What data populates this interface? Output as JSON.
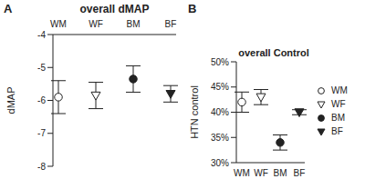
{
  "chart_data": [
    {
      "type": "scatter",
      "panel_label": "A",
      "title": "overall dMAP",
      "y_label": "dMAP",
      "categories": [
        "WM",
        "WF",
        "BM",
        "BF"
      ],
      "ylim": [
        -8,
        -4
      ],
      "yticks": [
        -8,
        -7,
        -6,
        -5,
        -4
      ],
      "series": [
        {
          "name": "WM",
          "marker": "circle_open",
          "color": "#222222",
          "values": [
            -5.9,
            null,
            null,
            null
          ],
          "error": [
            0.5,
            null,
            null,
            null
          ]
        },
        {
          "name": "WF",
          "marker": "triangle_down_open",
          "color": "#222222",
          "values": [
            null,
            -5.85,
            null,
            null
          ],
          "error": [
            null,
            0.4,
            null,
            null
          ]
        },
        {
          "name": "BM",
          "marker": "circle",
          "color": "#222222",
          "values": [
            null,
            null,
            -5.35,
            null
          ],
          "error": [
            null,
            null,
            0.4,
            null
          ]
        },
        {
          "name": "BF",
          "marker": "triangle_down",
          "color": "#222222",
          "values": [
            null,
            null,
            null,
            -5.8
          ],
          "error": [
            null,
            null,
            null,
            0.25
          ]
        }
      ]
    },
    {
      "type": "scatter",
      "panel_label": "B",
      "title": "overall Control",
      "y_label": "HTN control",
      "categories": [
        "WM",
        "WF",
        "BM",
        "BF"
      ],
      "ylim": [
        30,
        50
      ],
      "yticks": [
        {
          "value": 30,
          "label": "30%"
        },
        {
          "value": 35,
          "label": "35%"
        },
        {
          "value": 40,
          "label": "40%"
        },
        {
          "value": 45,
          "label": "45%"
        },
        {
          "value": 50,
          "label": "50%"
        }
      ],
      "legend": "right",
      "series": [
        {
          "name": "WM",
          "marker": "circle_open",
          "color": "#222222",
          "values": [
            42,
            null,
            null,
            null
          ],
          "error": [
            2,
            null,
            null,
            null
          ]
        },
        {
          "name": "WF",
          "marker": "triangle_down_open",
          "color": "#222222",
          "values": [
            null,
            43,
            null,
            null
          ],
          "error": [
            null,
            1.5,
            null,
            null
          ]
        },
        {
          "name": "BM",
          "marker": "circle",
          "color": "#222222",
          "values": [
            null,
            null,
            34,
            null
          ],
          "error": [
            null,
            null,
            1.5,
            null
          ]
        },
        {
          "name": "BF",
          "marker": "triangle_down",
          "color": "#222222",
          "values": [
            null,
            null,
            null,
            40
          ],
          "error": [
            null,
            null,
            null,
            0.5
          ]
        }
      ]
    }
  ]
}
